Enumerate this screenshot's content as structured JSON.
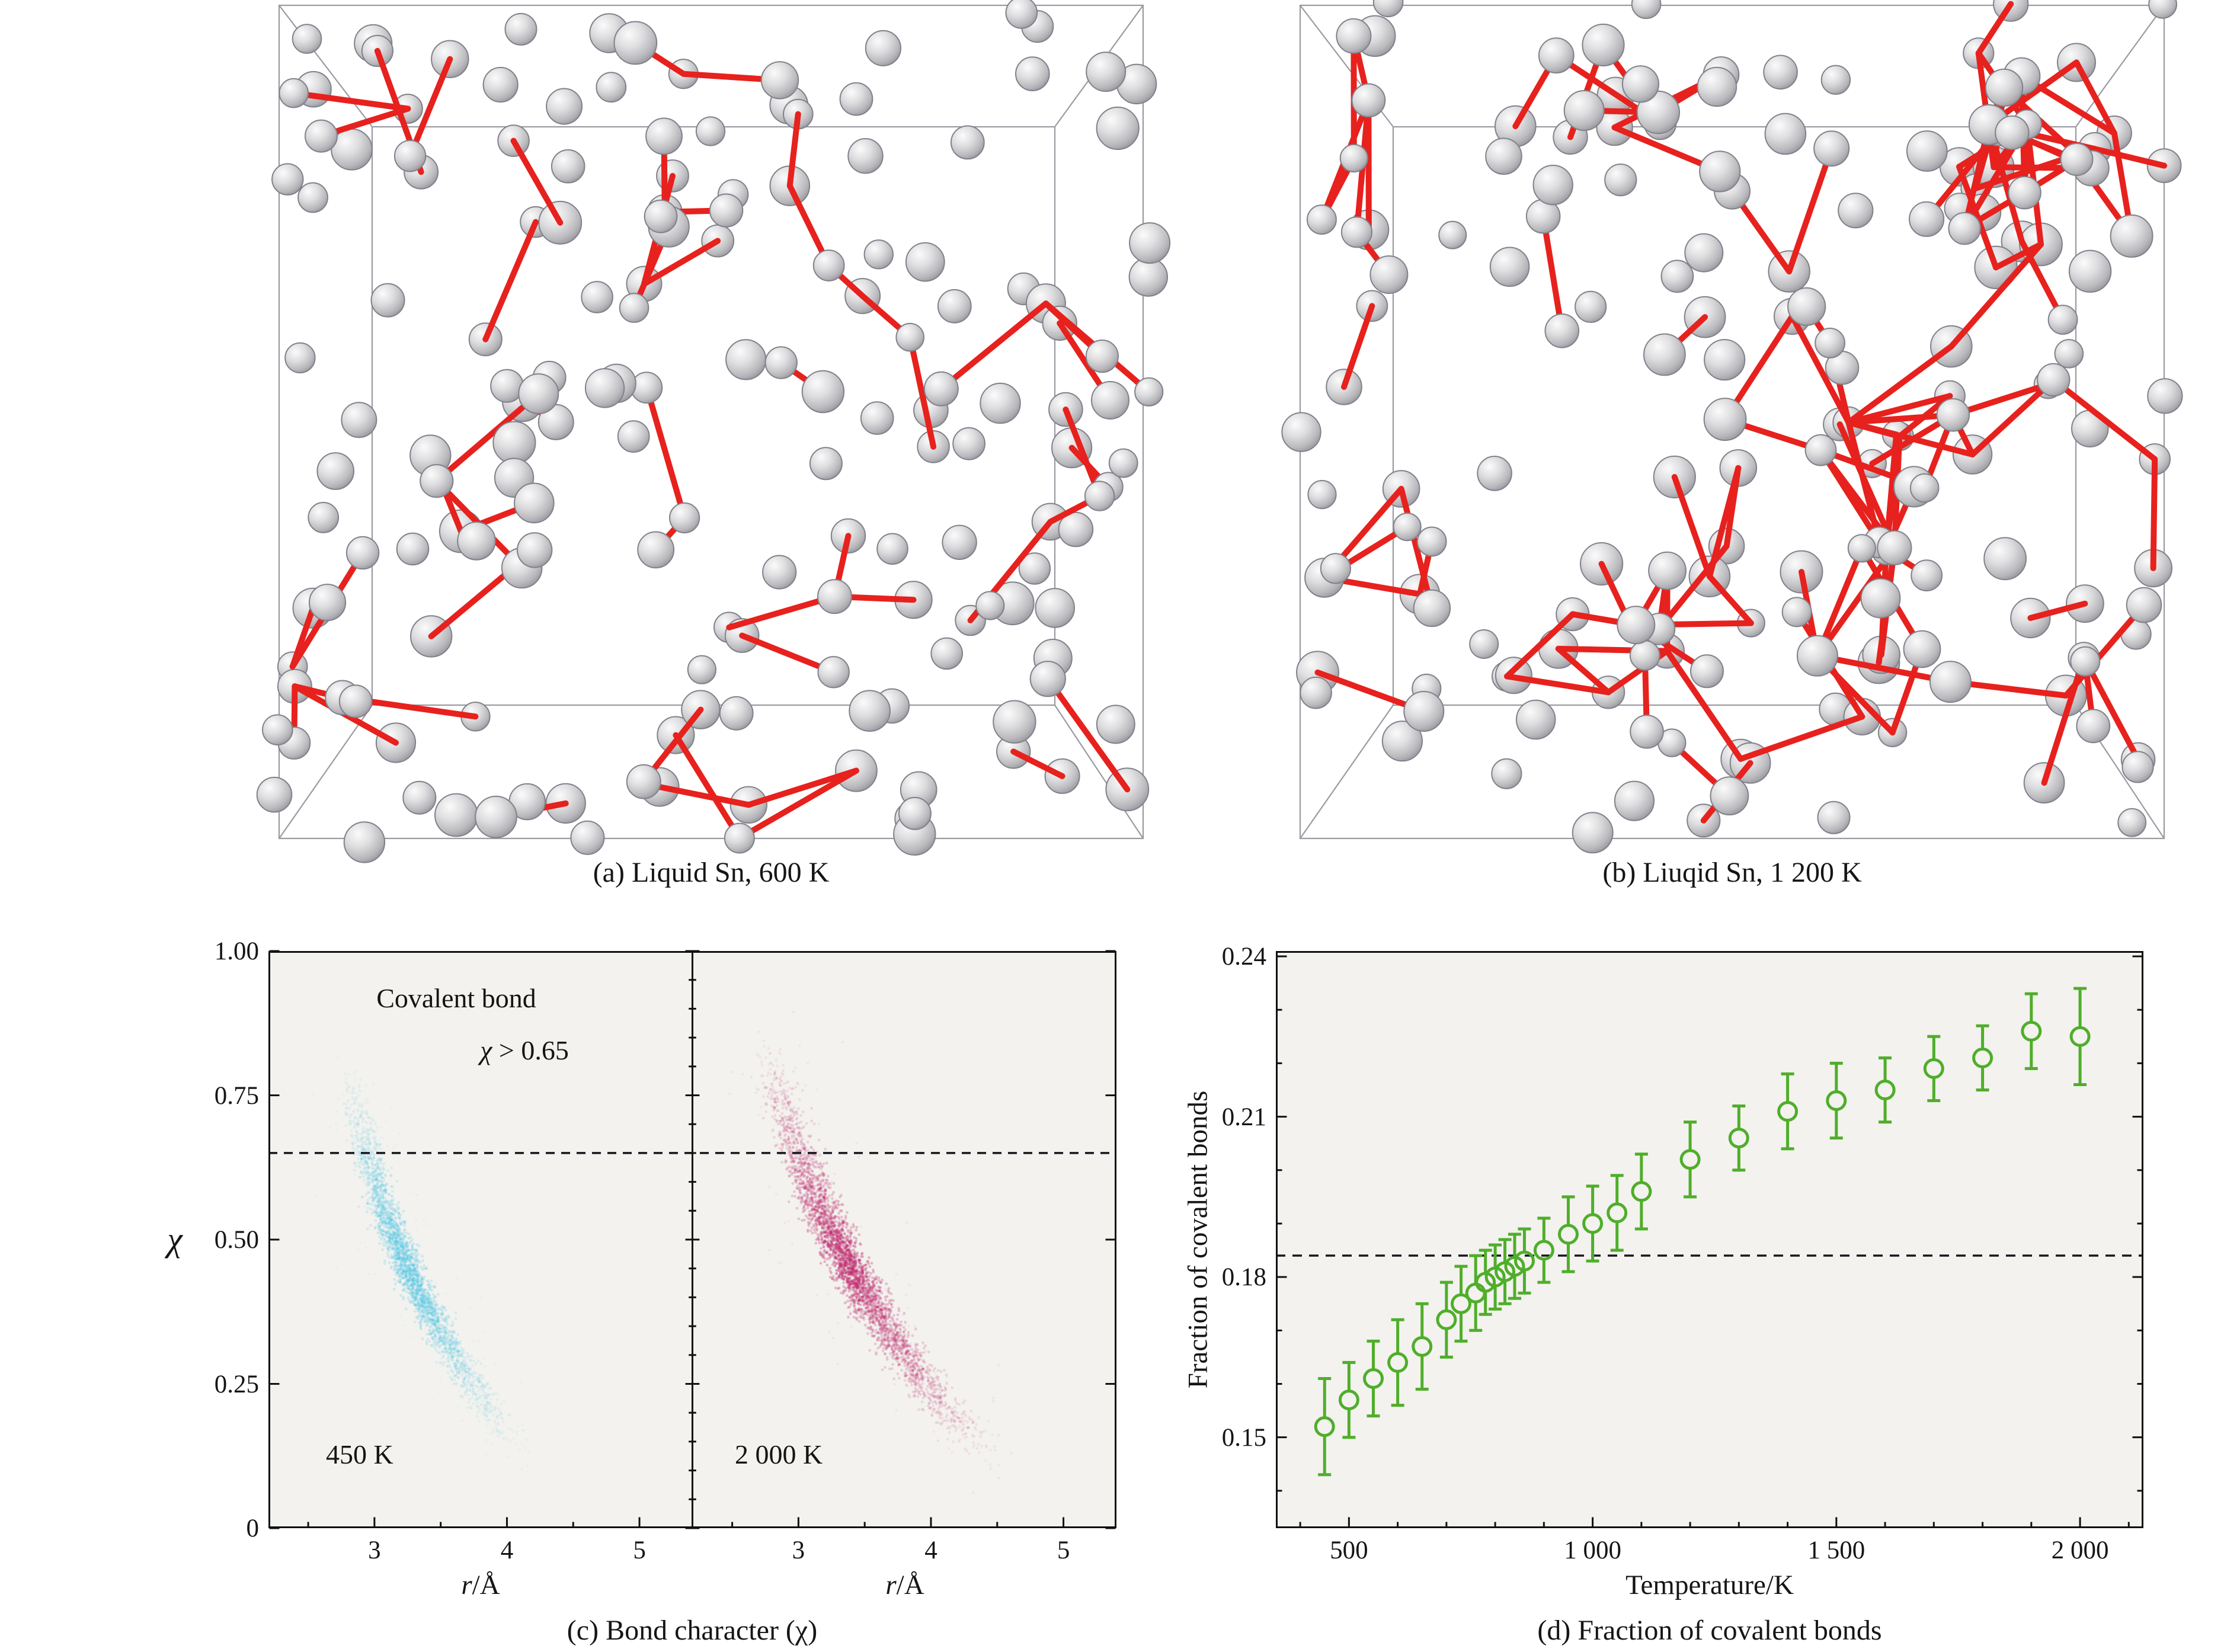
{
  "colors": {
    "page_bg": "#ffffff",
    "plot_bg": "#f3f2ee",
    "bond": "#e7211d",
    "box_line": "#9a9aa0",
    "dash": "#16161e"
  },
  "panel_a": {
    "caption": "(a) Liquid Sn, 600 K",
    "atom_count": 165,
    "bond_count": 55,
    "seed": 90217
  },
  "panel_b": {
    "caption": "(b) Liuqid Sn, 1 200 K",
    "atom_count": 172,
    "bond_count": 128,
    "seed": 41813
  },
  "panel_c": {
    "caption": "(c) Bond character (χ)",
    "annotation_line1": "Covalent bond",
    "ann2_chi": "χ",
    "ann2_rest": " > 0.65",
    "ylabel": "χ",
    "xlabel_italic": "r",
    "xlabel_unit": "/Å",
    "label_left": "450 K",
    "label_right": "2 000 K"
  },
  "panel_d": {
    "caption": "(d) Fraction of covalent bonds",
    "xlabel": "Temperature/K",
    "ylabel": "Fraction of covalent bonds"
  },
  "chart_data": [
    {
      "type": "scatter",
      "title": "Bond character (χ)",
      "xlabel": "r/Å",
      "ylabel": "χ",
      "xlim": [
        2.2,
        5.4
      ],
      "ylim": [
        0,
        1
      ],
      "xticks": [
        3,
        4,
        5
      ],
      "xtick_labels": [
        "3",
        "4",
        "5"
      ],
      "yticks": [
        0,
        0.25,
        0.5,
        0.75,
        1
      ],
      "ytick_labels": [
        "0",
        "0.25",
        "0.50",
        "0.75",
        "1.00"
      ],
      "threshold_chi": 0.65,
      "annotation": "Covalent bond χ > 0.65",
      "panels": [
        {
          "label": "450 K",
          "color": "#55c8e6",
          "band": {
            "start": [
              2.82,
              0.8
            ],
            "ctrl": [
              3.02,
              0.44
            ],
            "end": [
              4.12,
              0.13
            ],
            "sigma_r": 0.1,
            "sigma_chi": 0.022,
            "points": 2600,
            "density": 0.2
          }
        },
        {
          "label": "2 000 K",
          "color": "#bf2a6e",
          "band": {
            "start": [
              2.78,
              0.84
            ],
            "ctrl": [
              3.12,
              0.44
            ],
            "end": [
              4.45,
              0.12
            ],
            "sigma_r": 0.135,
            "sigma_chi": 0.024,
            "points": 3200,
            "density": 0.26
          }
        }
      ]
    },
    {
      "type": "scatter",
      "xlabel": "Temperature/K",
      "ylabel": "Fraction of covalent bonds",
      "xlim": [
        350,
        2130
      ],
      "ylim": [
        0.133,
        0.241
      ],
      "xticks": [
        500,
        1000,
        1500,
        2000
      ],
      "xtick_labels": [
        "500",
        "1 000",
        "1 500",
        "2 000"
      ],
      "yticks": [
        0.15,
        0.18,
        0.21,
        0.24
      ],
      "ytick_labels": [
        "0.15",
        "0.18",
        "0.21",
        "0.24"
      ],
      "dashed_line_y": 0.184,
      "marker_color": "#4fae2a",
      "points": [
        [
          450,
          0.152,
          0.009
        ],
        [
          500,
          0.157,
          0.007
        ],
        [
          550,
          0.161,
          0.007
        ],
        [
          600,
          0.164,
          0.008
        ],
        [
          650,
          0.167,
          0.008
        ],
        [
          700,
          0.172,
          0.007
        ],
        [
          730,
          0.175,
          0.007
        ],
        [
          760,
          0.177,
          0.007
        ],
        [
          780,
          0.179,
          0.006
        ],
        [
          800,
          0.18,
          0.006
        ],
        [
          820,
          0.181,
          0.006
        ],
        [
          840,
          0.182,
          0.006
        ],
        [
          860,
          0.183,
          0.006
        ],
        [
          900,
          0.185,
          0.006
        ],
        [
          950,
          0.188,
          0.007
        ],
        [
          1000,
          0.19,
          0.007
        ],
        [
          1050,
          0.192,
          0.007
        ],
        [
          1100,
          0.196,
          0.007
        ],
        [
          1200,
          0.202,
          0.007
        ],
        [
          1300,
          0.206,
          0.006
        ],
        [
          1400,
          0.211,
          0.007
        ],
        [
          1500,
          0.213,
          0.007
        ],
        [
          1600,
          0.215,
          0.006
        ],
        [
          1700,
          0.219,
          0.006
        ],
        [
          1800,
          0.221,
          0.006
        ],
        [
          1900,
          0.226,
          0.007
        ],
        [
          2000,
          0.225,
          0.009
        ]
      ]
    }
  ]
}
